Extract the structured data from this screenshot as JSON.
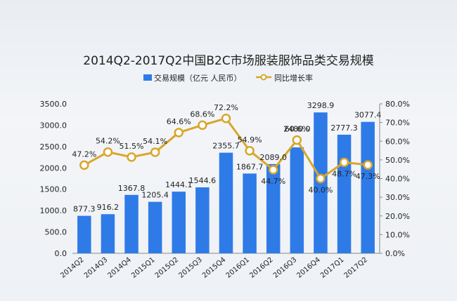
{
  "chart_data": {
    "type": "bar+line",
    "title": "2014Q2-2017Q2中国B2C市场服装服饰品类交易规模",
    "categories": [
      "2014Q2",
      "2014Q3",
      "2014Q4",
      "2015Q1",
      "2015Q2",
      "2015Q3",
      "2015Q4",
      "2016Q1",
      "2016Q2",
      "2016Q3",
      "2016Q4",
      "2017Q1",
      "2017Q2"
    ],
    "series": [
      {
        "name": "交易规模（亿元 人民币）",
        "type": "bar",
        "axis": "left",
        "values": [
          877.3,
          916.2,
          1367.8,
          1205.4,
          1444.1,
          1544.6,
          2355.7,
          1867.7,
          2089.0,
          2480.0,
          3298.9,
          2777.3,
          3077.4
        ],
        "labels": [
          "877.3",
          "916.2",
          "1367.8",
          "1205.4",
          "1444.1",
          "1544.6",
          "2355.7",
          "1867.7",
          "2089.0",
          "2480.0",
          "3298.9",
          "2777.3",
          "3077.4"
        ],
        "color": "#2e7be8"
      },
      {
        "name": "同比增长率",
        "type": "line",
        "axis": "right",
        "values": [
          47.2,
          54.2,
          51.5,
          54.1,
          64.6,
          68.6,
          72.2,
          54.9,
          44.7,
          60.6,
          40.0,
          48.7,
          47.3
        ],
        "labels": [
          "47.2%",
          "54.2%",
          "51.5%",
          "54.1%",
          "64.6%",
          "68.6%",
          "72.2%",
          "54.9%",
          "44.7%",
          "60.6%",
          "40.0%",
          "48.7%",
          "47.3%"
        ],
        "color": "#d9a62a"
      }
    ],
    "y_left": {
      "ylim": [
        0,
        3500
      ],
      "ticks": [
        "0.0",
        "500.0",
        "1000.0",
        "1500.0",
        "2000.0",
        "2500.0",
        "3000.0",
        "3500.0"
      ]
    },
    "y_right": {
      "ylim": [
        0,
        80
      ],
      "ticks": [
        "0.0%",
        "10.0%",
        "20.0%",
        "30.0%",
        "40.0%",
        "50.0%",
        "60.0%",
        "70.0%",
        "80.0%"
      ]
    },
    "legend": "top",
    "grid": false
  }
}
